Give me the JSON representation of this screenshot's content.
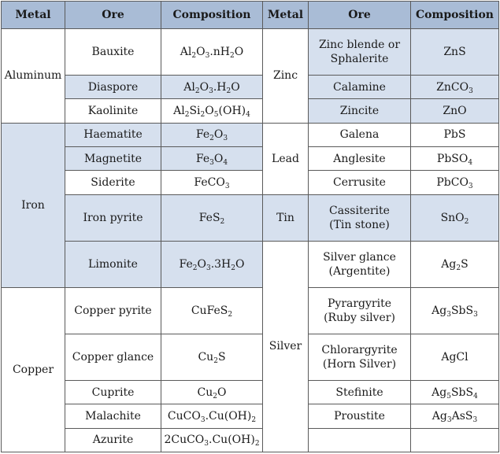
{
  "headers": [
    "Metal",
    "Ore",
    "Composition",
    "Metal",
    "Ore",
    "Composition"
  ],
  "left": {
    "metals": [
      "Aluminum",
      "Iron",
      "Copper"
    ],
    "rows": [
      {
        "ore": "Bauxite",
        "comp": [
          [
            "Al",
            "2"
          ],
          [
            "O",
            "3"
          ],
          [
            ".nH",
            "2"
          ],
          [
            "O",
            ""
          ]
        ]
      },
      {
        "ore": "Diaspore",
        "comp": [
          [
            "Al",
            "2"
          ],
          [
            "O",
            "3"
          ],
          [
            ".H",
            "2"
          ],
          [
            "O",
            ""
          ]
        ]
      },
      {
        "ore": "Kaolinite",
        "comp": [
          [
            "Al",
            "2"
          ],
          [
            "Si",
            "2"
          ],
          [
            "O",
            "5"
          ],
          [
            "(OH)",
            "4"
          ]
        ]
      },
      {
        "ore": "Haematite",
        "comp": [
          [
            "Fe",
            "2"
          ],
          [
            "O",
            "3"
          ]
        ]
      },
      {
        "ore": "Magnetite",
        "comp": [
          [
            "Fe",
            "3"
          ],
          [
            "O",
            "4"
          ]
        ]
      },
      {
        "ore": "Siderite",
        "comp": [
          [
            "FeCO",
            "3"
          ]
        ]
      },
      {
        "ore": "Iron pyrite",
        "comp": [
          [
            "FeS",
            "2"
          ]
        ]
      },
      {
        "ore": "Limonite",
        "comp": [
          [
            "Fe",
            "2"
          ],
          [
            "O",
            "3"
          ],
          [
            ".3H",
            "2"
          ],
          [
            "O",
            ""
          ]
        ]
      },
      {
        "ore": "Copper pyrite",
        "comp": [
          [
            "CuFeS",
            "2"
          ]
        ]
      },
      {
        "ore": "Copper glance",
        "comp": [
          [
            "Cu",
            "2"
          ],
          [
            "S",
            ""
          ]
        ]
      },
      {
        "ore": "Cuprite",
        "comp": [
          [
            "Cu",
            "2"
          ],
          [
            "O",
            ""
          ]
        ]
      },
      {
        "ore": "Malachite",
        "comp": [
          [
            "CuCO",
            "3"
          ],
          [
            ".Cu(OH)",
            "2"
          ]
        ]
      },
      {
        "ore": "Azurite",
        "comp": [
          [
            "2CuCO",
            "3"
          ],
          [
            ".Cu(OH)",
            "2"
          ]
        ]
      }
    ]
  },
  "right": {
    "metals": [
      "Zinc",
      "Lead",
      "Tin",
      "Silver"
    ],
    "rows": [
      {
        "ore": [
          "Zinc blende or",
          "Sphalerite"
        ],
        "comp": [
          [
            "ZnS",
            ""
          ]
        ]
      },
      {
        "ore": [
          "Calamine"
        ],
        "comp": [
          [
            "ZnCO",
            "3"
          ]
        ]
      },
      {
        "ore": [
          "Zincite"
        ],
        "comp": [
          [
            "ZnO",
            ""
          ]
        ]
      },
      {
        "ore": [
          "Galena"
        ],
        "comp": [
          [
            "PbS",
            ""
          ]
        ]
      },
      {
        "ore": [
          "Anglesite"
        ],
        "comp": [
          [
            "PbSO",
            "4"
          ]
        ]
      },
      {
        "ore": [
          "Cerrusite"
        ],
        "comp": [
          [
            "PbCO",
            "3"
          ]
        ]
      },
      {
        "ore": [
          "Cassiterite",
          "(Tin stone)"
        ],
        "comp": [
          [
            "SnO",
            "2"
          ]
        ]
      },
      {
        "ore": [
          "Silver glance",
          "(Argentite)"
        ],
        "comp": [
          [
            "Ag",
            "2"
          ],
          [
            "S",
            ""
          ]
        ]
      },
      {
        "ore": [
          "Pyrargyrite",
          "(Ruby silver)"
        ],
        "comp": [
          [
            "Ag",
            "3"
          ],
          [
            "SbS",
            "3"
          ]
        ]
      },
      {
        "ore": [
          "Chlorargyrite",
          "(Horn Silver)"
        ],
        "comp": [
          [
            "AgCl",
            ""
          ]
        ]
      },
      {
        "ore": [
          "Stefinite"
        ],
        "comp": [
          [
            "Ag",
            "5"
          ],
          [
            "SbS",
            "4"
          ]
        ]
      },
      {
        "ore": [
          "Proustite"
        ],
        "comp": [
          [
            "Ag",
            "3"
          ],
          [
            "AsS",
            "3"
          ]
        ]
      }
    ]
  }
}
